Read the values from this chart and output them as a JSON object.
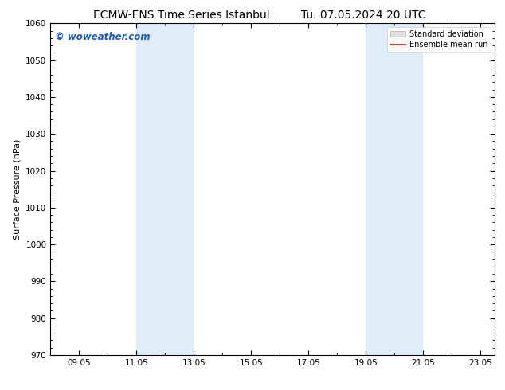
{
  "title_left": "ECMW-ENS Time Series Istanbul",
  "title_right": "Tu. 07.05.2024 20 UTC",
  "ylabel": "Surface Pressure (hPa)",
  "ylim": [
    970,
    1060
  ],
  "yticks": [
    970,
    980,
    990,
    1000,
    1010,
    1020,
    1030,
    1040,
    1050,
    1060
  ],
  "xlim": [
    8.0,
    23.5
  ],
  "xtick_labels": [
    "09.05",
    "11.05",
    "13.05",
    "15.05",
    "17.05",
    "19.05",
    "21.05",
    "23.05"
  ],
  "xtick_positions": [
    9,
    11,
    13,
    15,
    17,
    19,
    21,
    23
  ],
  "shaded_bands": [
    {
      "x_start": 11.0,
      "x_end": 13.0
    },
    {
      "x_start": 19.0,
      "x_end": 21.0
    }
  ],
  "shaded_color": "#deedf8",
  "background_color": "#ffffff",
  "legend_std_label": "Standard deviation",
  "legend_mean_label": "Ensemble mean run",
  "legend_std_facecolor": "#e0e0e0",
  "legend_std_edgecolor": "#aaaaaa",
  "legend_mean_color": "#ff0000",
  "watermark_text": "© woweather.com",
  "watermark_color": "#1a5bc4",
  "title_fontsize": 10,
  "tick_labelsize": 7.5,
  "ylabel_fontsize": 8,
  "legend_fontsize": 7,
  "watermark_fontsize": 8.5,
  "spine_color": "#000000",
  "spine_linewidth": 0.8
}
